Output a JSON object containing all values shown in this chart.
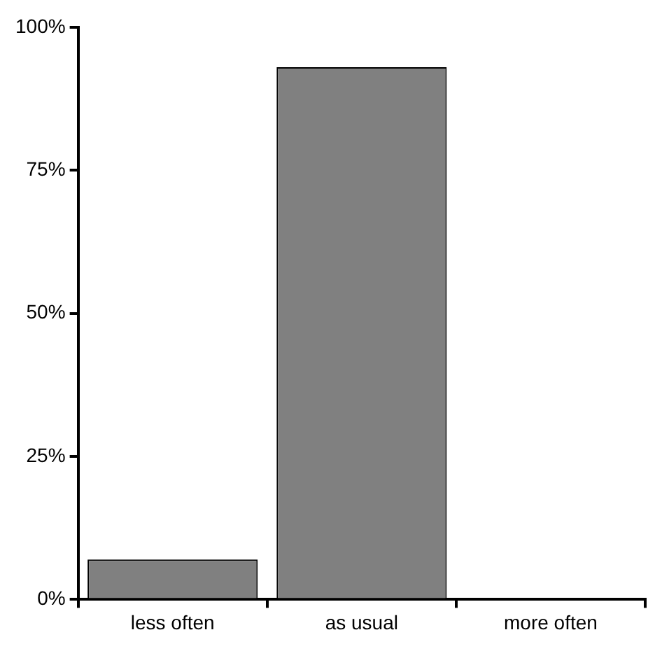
{
  "chart_data": {
    "type": "bar",
    "categories": [
      "less often",
      "as usual",
      "more often"
    ],
    "values": [
      7,
      93,
      0
    ],
    "color": "#808080",
    "ylim": [
      0,
      100
    ],
    "yticks": [
      {
        "value": 0,
        "label": "0%"
      },
      {
        "value": 25,
        "label": "25%"
      },
      {
        "value": 50,
        "label": "50%"
      },
      {
        "value": 75,
        "label": "75%"
      },
      {
        "value": 100,
        "label": "100%"
      }
    ],
    "grid": false,
    "legend": false
  }
}
